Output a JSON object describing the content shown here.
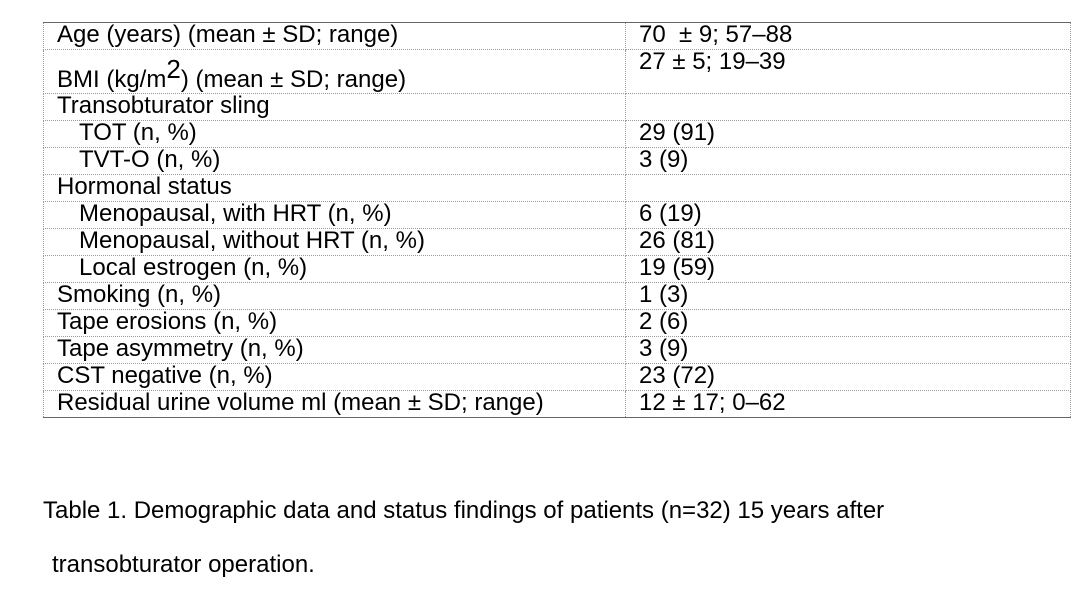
{
  "table": {
    "rows": [
      {
        "label": "Age (years) (mean ± SD; range)",
        "value": "70  ± 9; 57–88"
      },
      {
        "label_pre": "BMI (kg/m",
        "label_sup": "2",
        "label_post": ") (mean ± SD; range)",
        "value": "27 ± 5; 19–39"
      },
      {
        "label": "Transobturator sling",
        "value": ""
      },
      {
        "label": "TOT (n, %)",
        "value": "29 (91)"
      },
      {
        "label": "TVT-O (n, %)",
        "value": "3 (9)"
      },
      {
        "label": "Hormonal status",
        "value": ""
      },
      {
        "label": "Menopausal, with HRT (n, %)",
        "value": "6 (19)"
      },
      {
        "label": "Menopausal, without HRT (n, %)",
        "value": "26 (81)"
      },
      {
        "label": "Local estrogen (n, %)",
        "value": "19 (59)"
      },
      {
        "label": "Smoking (n, %)",
        "value": "1 (3)"
      },
      {
        "label": "Tape erosions (n, %)",
        "value": "2 (6)"
      },
      {
        "label": "Tape asymmetry (n, %)",
        "value": "3 (9)"
      },
      {
        "label": "CST negative (n, %)",
        "value": "23 (72)"
      },
      {
        "label": "Residual urine volume ml (mean ± SD; range)",
        "value": "12 ± 17; 0–62"
      }
    ]
  },
  "caption": {
    "line1": "Table 1. Demographic data and status findings of patients (n=32) 15 years after",
    "line2": "transobturator operation."
  }
}
